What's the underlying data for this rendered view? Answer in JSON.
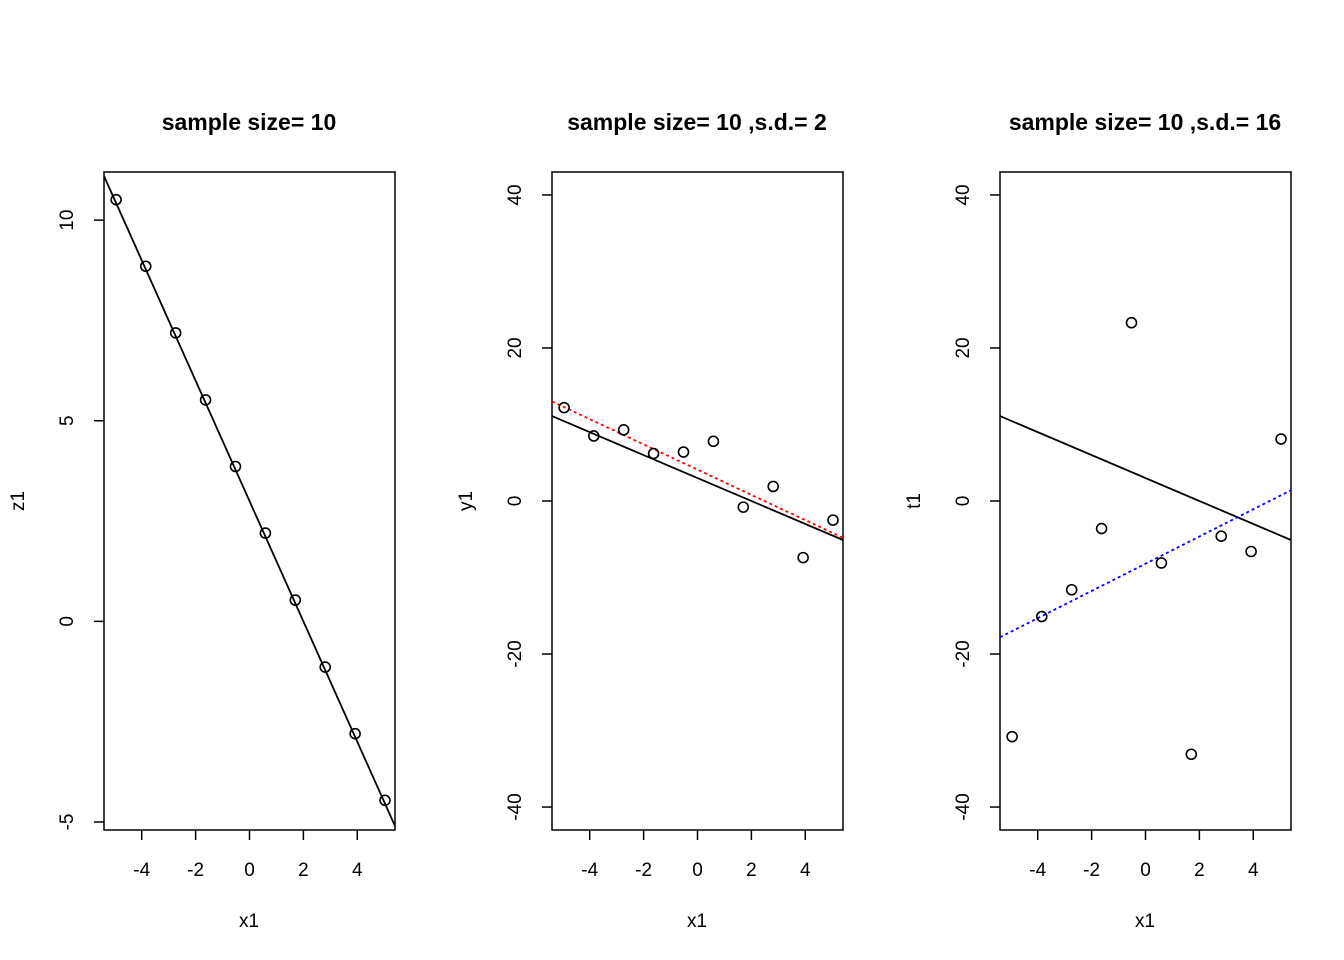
{
  "chart_data": [
    {
      "type": "scatter",
      "title": "sample size= 10",
      "xlabel": "x1",
      "ylabel": "z1",
      "xlim": [
        -5.4,
        5.4
      ],
      "ylim": [
        -5.2,
        11.2
      ],
      "xticks": [
        -4,
        -2,
        0,
        2,
        4
      ],
      "yticks": [
        -5,
        0,
        5,
        10
      ],
      "points": {
        "x": [
          -4.95,
          -3.85,
          -2.74,
          -1.63,
          -0.52,
          0.59,
          1.7,
          2.81,
          3.92,
          5.03
        ],
        "y": [
          10.51,
          8.85,
          7.19,
          5.52,
          3.86,
          2.2,
          0.53,
          -1.14,
          -2.8,
          -4.46
        ]
      },
      "lines": [
        {
          "name": "",
          "type": "solid",
          "color": "#000000",
          "intercept": 3.0,
          "slope": -1.5
        }
      ]
    },
    {
      "type": "scatter",
      "title": "sample size= 10 ,s.d.= 2",
      "xlabel": "x1",
      "ylabel": "y1",
      "xlim": [
        -5.4,
        5.4
      ],
      "ylim": [
        -43,
        43
      ],
      "xticks": [
        -4,
        -2,
        0,
        2,
        4
      ],
      "yticks": [
        -40,
        -20,
        0,
        20,
        40
      ],
      "points": {
        "x": [
          -4.95,
          -3.85,
          -2.74,
          -1.63,
          -0.52,
          0.59,
          1.7,
          2.81,
          3.92,
          5.03
        ],
        "y": [
          12.2,
          8.5,
          9.3,
          6.2,
          6.4,
          7.8,
          -0.8,
          1.9,
          -7.4,
          -2.5
        ]
      },
      "lines": [
        {
          "name": "",
          "type": "solid",
          "color": "#000000",
          "intercept": 3.0,
          "slope": -1.5
        },
        {
          "name": "",
          "type": "dotted",
          "color": "#ff0000",
          "intercept": 4.1,
          "slope": -1.65
        }
      ]
    },
    {
      "type": "scatter",
      "title": "sample size= 10 ,s.d.= 16",
      "xlabel": "x1",
      "ylabel": "t1",
      "xlim": [
        -5.4,
        5.4
      ],
      "ylim": [
        -43,
        43
      ],
      "xticks": [
        -4,
        -2,
        0,
        2,
        4
      ],
      "yticks": [
        -40,
        -20,
        0,
        20,
        40
      ],
      "points": {
        "x": [
          -4.95,
          -3.85,
          -2.74,
          -1.63,
          -0.52,
          0.59,
          1.7,
          2.81,
          3.92,
          5.03
        ],
        "y": [
          -30.8,
          -15.1,
          -11.6,
          -3.6,
          23.3,
          -8.1,
          -33.1,
          -4.6,
          -6.6,
          8.1
        ]
      },
      "lines": [
        {
          "name": "",
          "type": "solid",
          "color": "#000000",
          "intercept": 3.0,
          "slope": -1.5
        },
        {
          "name": "",
          "type": "dotted",
          "color": "#0000ff",
          "intercept": -8.2,
          "slope": 1.78
        }
      ]
    }
  ]
}
